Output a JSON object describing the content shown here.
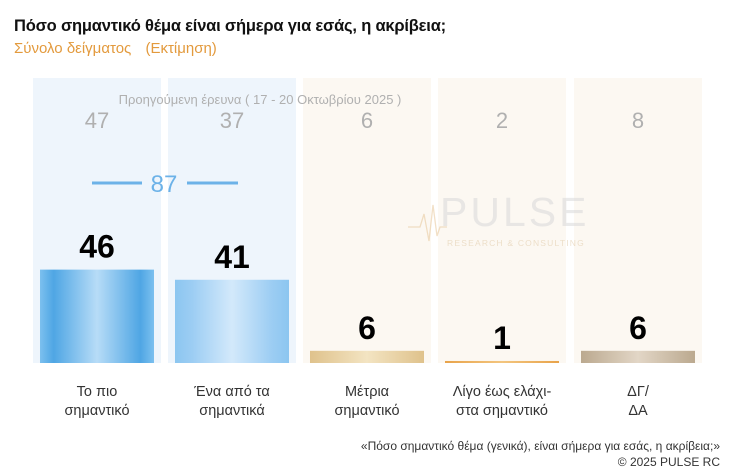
{
  "title": "Πόσο σημαντικό θέμα είναι σήμερα για εσάς, η ακρίβεια;",
  "subtitle": {
    "left": "Σύνολο δείγματος",
    "right": "(Εκτίμηση)"
  },
  "previous_survey_label": "Προηγούμενη έρευνα ( 17 - 20 Οκτωβρίου 2025 )",
  "combined_label": "87",
  "watermark": {
    "name": "PULSE",
    "tagline": "RESEARCH & CONSULTING"
  },
  "footnote": {
    "question": "«Πόσο σημαντικό θέμα (γενικά), είναι σήμερα για εσάς, η ακρίβεια;»",
    "copyright": "©  2025  PULSE RC"
  },
  "colors": {
    "blue_dark": "#5aaee8",
    "blue_light": "#a9d3f5",
    "beige": "#e6cfa0",
    "orange": "#e8a34a",
    "taupe": "#c8b8a4",
    "column_bg_blue": "#eef5fc",
    "column_bg_warm": "#fcf8f2",
    "previous_text": "#b0b0b0",
    "combined_blue": "#6cb2e8"
  },
  "chart_data": {
    "type": "bar",
    "categories": [
      [
        "Το πιο",
        "σημαντικό"
      ],
      [
        "Ένα από τα",
        "σημαντικά"
      ],
      [
        "Μέτρια",
        "σημαντικό"
      ],
      [
        "Λίγο έως ελάχι-",
        "στα σημαντικό"
      ],
      [
        "ΔΓ/",
        "ΔΑ"
      ]
    ],
    "values": [
      46,
      41,
      6,
      1,
      6
    ],
    "previous_values": [
      47,
      37,
      6,
      2,
      8
    ],
    "combined_value": 87,
    "ylim": [
      0,
      100
    ]
  }
}
